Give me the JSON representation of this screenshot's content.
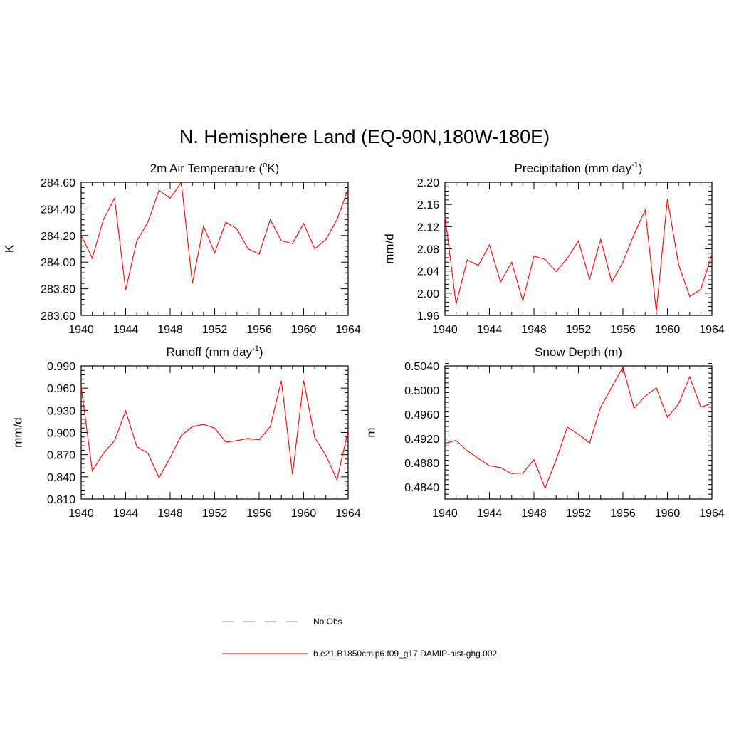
{
  "figure": {
    "title": "N. Hemisphere Land (EQ-90N,180W-180E)"
  },
  "legend": {
    "items": [
      {
        "label": "No Obs",
        "color": "#a0a0ff",
        "dash": "dashed"
      },
      {
        "label": "b.e21.B1850cmip6.f09_g17.DAMIP-hist-ghg.002",
        "color": "#ff0000",
        "dash": "solid"
      }
    ]
  },
  "chart_data": [
    {
      "type": "line",
      "title_parts": [
        "2m Air Temperature (",
        "o",
        "K)"
      ],
      "ylabel": "K",
      "xlim": [
        1940,
        1964
      ],
      "ylim": [
        283.6,
        284.6
      ],
      "x_ticks": [
        "1940",
        "1944",
        "1948",
        "1952",
        "1956",
        "1960",
        "1964"
      ],
      "y_ticks": [
        "283.60",
        "283.80",
        "284.00",
        "284.20",
        "284.40",
        "284.60"
      ],
      "x": [
        1940,
        1941,
        1942,
        1943,
        1944,
        1945,
        1946,
        1947,
        1948,
        1949,
        1950,
        1951,
        1952,
        1953,
        1954,
        1955,
        1956,
        1957,
        1958,
        1959,
        1960,
        1961,
        1962,
        1963,
        1964
      ],
      "series": [
        {
          "values": [
            284.2,
            284.03,
            284.32,
            284.48,
            283.79,
            284.16,
            284.3,
            284.54,
            284.48,
            284.6,
            283.84,
            284.27,
            284.07,
            284.3,
            284.25,
            284.1,
            284.06,
            284.32,
            284.16,
            284.14,
            284.29,
            284.1,
            284.17,
            284.32,
            284.55
          ],
          "color": "#ff0000"
        }
      ]
    },
    {
      "type": "line",
      "title_parts": [
        "Precipitation (mm day",
        "-1",
        ")"
      ],
      "ylabel": "mm/d",
      "xlim": [
        1940,
        1964
      ],
      "ylim": [
        1.96,
        2.2
      ],
      "x_ticks": [
        "1940",
        "1944",
        "1948",
        "1952",
        "1956",
        "1960",
        "1964"
      ],
      "y_ticks": [
        "1.96",
        "2.00",
        "2.04",
        "2.08",
        "2.12",
        "2.16",
        "2.20"
      ],
      "x": [
        1940,
        1941,
        1942,
        1943,
        1944,
        1945,
        1946,
        1947,
        1948,
        1949,
        1950,
        1951,
        1952,
        1953,
        1954,
        1955,
        1956,
        1957,
        1958,
        1959,
        1960,
        1961,
        1962,
        1963,
        1964
      ],
      "series": [
        {
          "values": [
            2.14,
            1.98,
            2.06,
            2.05,
            2.087,
            2.02,
            2.056,
            1.986,
            2.067,
            2.061,
            2.039,
            2.063,
            2.094,
            2.025,
            2.097,
            2.02,
            2.056,
            2.106,
            2.15,
            1.967,
            2.17,
            2.052,
            1.994,
            2.007,
            2.07
          ],
          "color": "#ff0000"
        }
      ]
    },
    {
      "type": "line",
      "title_parts": [
        "Runoff (mm day",
        "-1",
        ")"
      ],
      "ylabel": "mm/d",
      "xlim": [
        1940,
        1964
      ],
      "ylim": [
        0.81,
        0.99
      ],
      "x_ticks": [
        "1940",
        "1944",
        "1948",
        "1952",
        "1956",
        "1960",
        "1964"
      ],
      "y_ticks": [
        "0.810",
        "0.840",
        "0.870",
        "0.900",
        "0.930",
        "0.960",
        "0.990"
      ],
      "x": [
        1940,
        1941,
        1942,
        1943,
        1944,
        1945,
        1946,
        1947,
        1948,
        1949,
        1950,
        1951,
        1952,
        1953,
        1954,
        1955,
        1956,
        1957,
        1958,
        1959,
        1960,
        1961,
        1962,
        1963,
        1964
      ],
      "series": [
        {
          "values": [
            0.962,
            0.848,
            0.872,
            0.889,
            0.929,
            0.881,
            0.872,
            0.839,
            0.866,
            0.896,
            0.908,
            0.911,
            0.906,
            0.887,
            0.889,
            0.892,
            0.89,
            0.908,
            0.97,
            0.843,
            0.97,
            0.893,
            0.869,
            0.836,
            0.903
          ],
          "color": "#ff0000"
        }
      ]
    },
    {
      "type": "line",
      "title_parts": [
        "Snow Depth (m)"
      ],
      "ylabel": "m",
      "xlim": [
        1940,
        1964
      ],
      "ylim": [
        0.482,
        0.504
      ],
      "x_ticks": [
        "1940",
        "1944",
        "1948",
        "1952",
        "1956",
        "1960",
        "1964"
      ],
      "y_ticks": [
        "0.4840",
        "0.4880",
        "0.4920",
        "0.4960",
        "0.5000",
        "0.5040"
      ],
      "x": [
        1940,
        1941,
        1942,
        1943,
        1944,
        1945,
        1946,
        1947,
        1948,
        1949,
        1950,
        1951,
        1952,
        1953,
        1954,
        1955,
        1956,
        1957,
        1958,
        1959,
        1960,
        1961,
        1962,
        1963,
        1964
      ],
      "series": [
        {
          "values": [
            0.4912,
            0.4917,
            0.49,
            0.4887,
            0.4875,
            0.4872,
            0.4862,
            0.4863,
            0.4885,
            0.4838,
            0.4885,
            0.4939,
            0.4927,
            0.4913,
            0.4972,
            0.5005,
            0.5038,
            0.497,
            0.499,
            0.5004,
            0.4955,
            0.4977,
            0.5022,
            0.4972,
            0.4978
          ],
          "color": "#ff0000"
        }
      ]
    }
  ]
}
